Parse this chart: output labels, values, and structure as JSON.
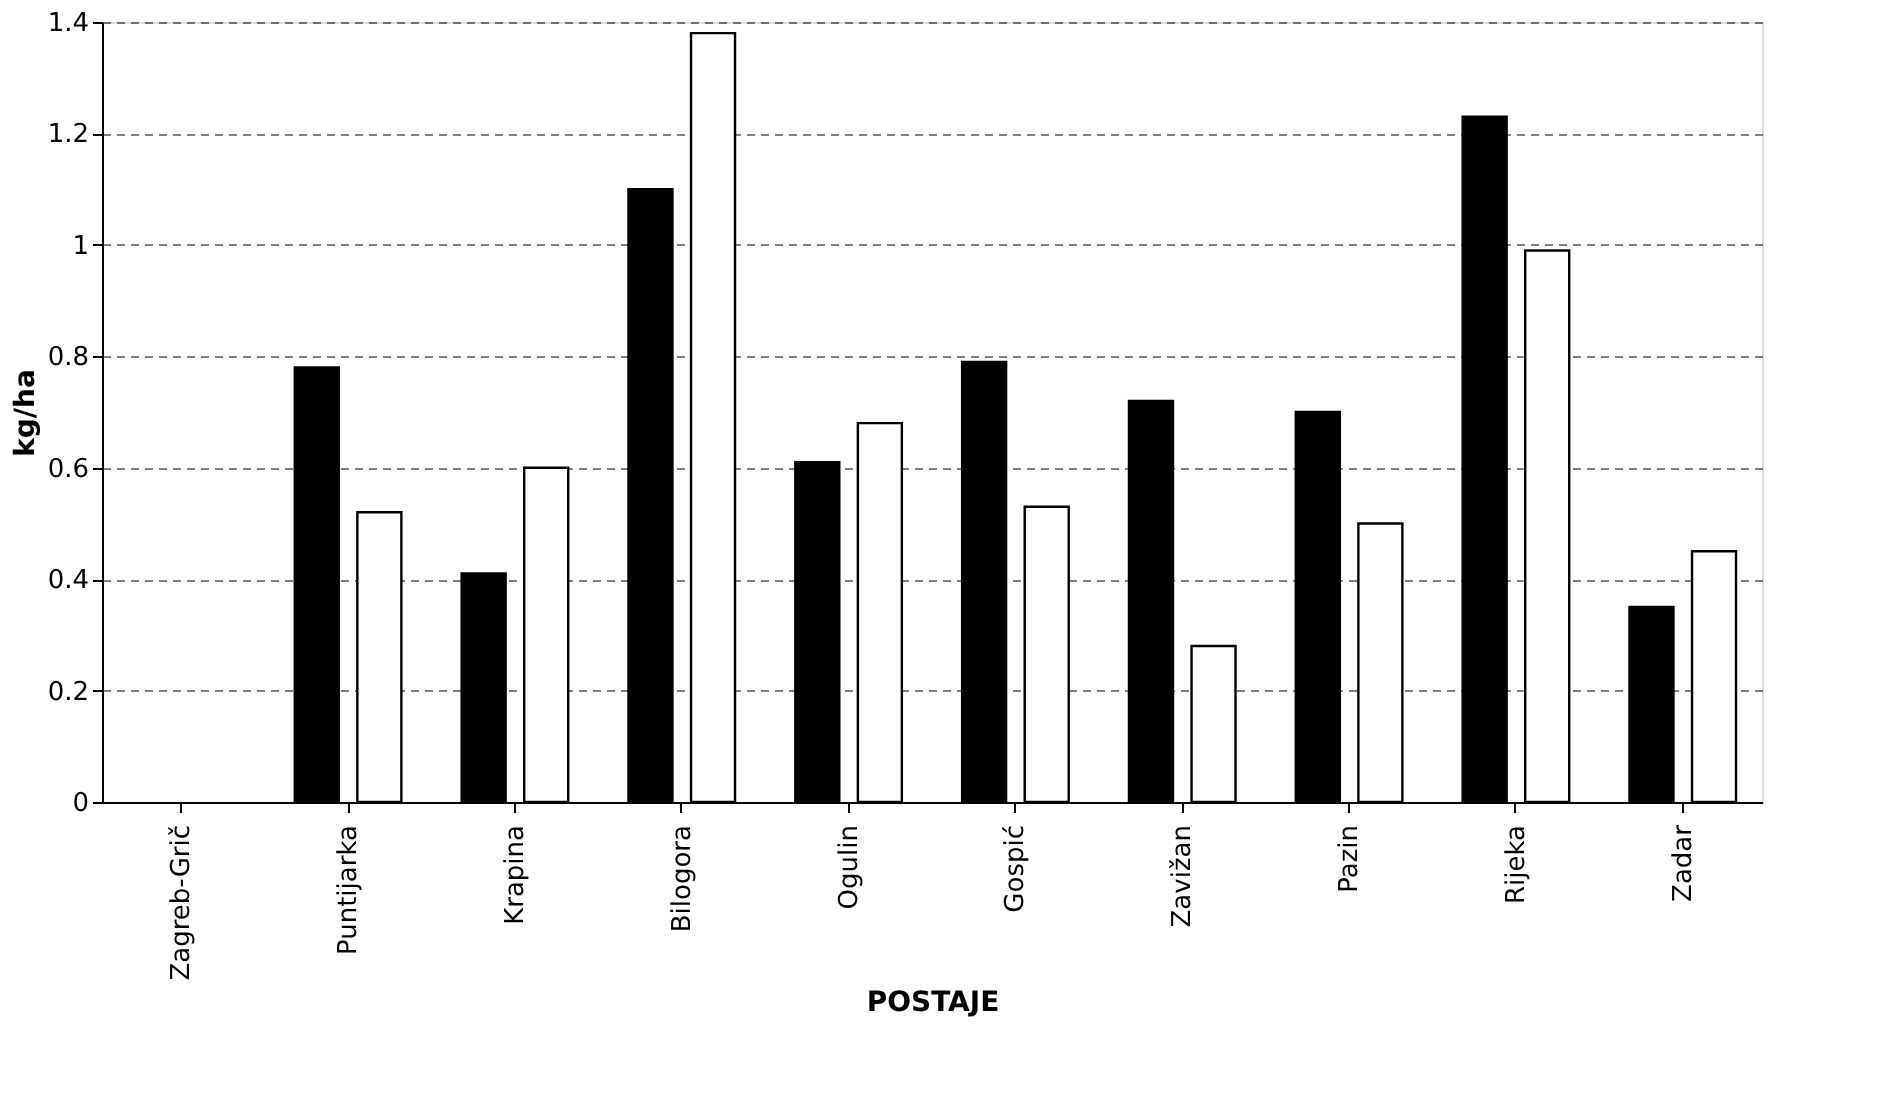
{
  "chart_data": {
    "type": "bar",
    "xlabel": "POSTAJE",
    "ylabel": "kg/ha",
    "categories": [
      "Zagreb-Grič",
      "Puntijarka",
      "Krapina",
      "Bilogora",
      "Ogulin",
      "Gospić",
      "Zavižan",
      "Pazin",
      "Rijeka",
      "Zadar"
    ],
    "series": [
      {
        "color": "#000000",
        "values": [
          null,
          0.78,
          0.41,
          1.1,
          0.61,
          0.79,
          0.72,
          0.7,
          1.23,
          0.35
        ]
      },
      {
        "color": "#ffffff",
        "values": [
          null,
          0.52,
          0.6,
          1.38,
          0.68,
          0.53,
          0.28,
          0.5,
          0.99,
          0.45
        ]
      }
    ],
    "ylim": [
      0,
      1.4
    ],
    "yticks": [
      0,
      0.2,
      0.4,
      0.6,
      0.8,
      1,
      1.2,
      1.4
    ],
    "grid": "y",
    "legend": false
  }
}
